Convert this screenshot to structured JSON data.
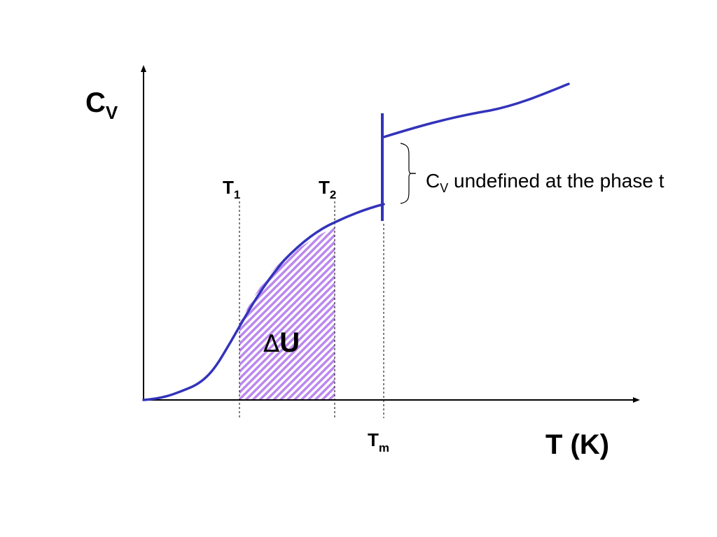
{
  "diagram": {
    "y_axis_label": {
      "main": "C",
      "sub": "V"
    },
    "x_axis_label": "T (K)",
    "markers": {
      "t1": {
        "main": "T",
        "sub": "1"
      },
      "t2": {
        "main": "T",
        "sub": "2"
      },
      "tm": {
        "main": "T",
        "sub": "m"
      }
    },
    "area_label": {
      "delta": "Δ",
      "text": "U"
    },
    "annotation": {
      "main": "C",
      "sub": "V",
      "rest": " undefined at the phase t"
    },
    "colors": {
      "curve": "#3333bb",
      "hatch_a": "#bb88ee",
      "hatch_b": "#ffffff",
      "axes": "#000000"
    }
  }
}
